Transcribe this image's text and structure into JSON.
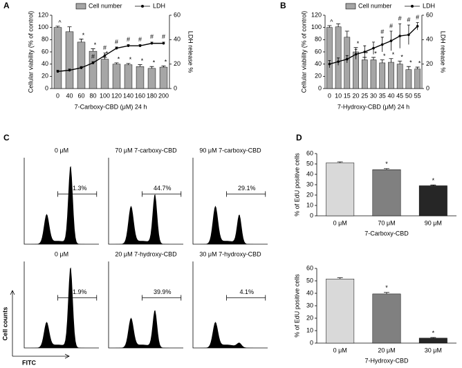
{
  "chart_data": [
    {
      "type": "combo",
      "panel": "A",
      "xlabel": "7-Carboxy-CBD (μM) 24 h",
      "ylabel": "Cellular viability (% of control)",
      "y2label": "LDH release %",
      "categories": [
        "0",
        "40",
        "60",
        "80",
        "100",
        "120",
        "140",
        "160",
        "180",
        "200"
      ],
      "ylim": [
        0,
        120
      ],
      "yticks": [
        0,
        20,
        40,
        60,
        80,
        100,
        120
      ],
      "y2lim": [
        0,
        60
      ],
      "y2ticks": [
        0,
        20,
        40,
        60
      ],
      "series": [
        {
          "name": "Cell number",
          "color": "#a6a6a6",
          "values": [
            100,
            93,
            76,
            61,
            48,
            40,
            39,
            36,
            33,
            35
          ],
          "errors": [
            2,
            8,
            5,
            4,
            3,
            2,
            2,
            3,
            3,
            2
          ],
          "annotations": [
            "^",
            null,
            "*",
            "*",
            "*",
            "*",
            "*",
            "*",
            "*",
            "*"
          ]
        },
        {
          "name": "LDH",
          "color": "#000000",
          "axis": "y2",
          "values": [
            14,
            15,
            17,
            21,
            27,
            33,
            35,
            35,
            37,
            37
          ],
          "errors": [
            1,
            1,
            1,
            1,
            2,
            1,
            1,
            1,
            1,
            1
          ],
          "annotations": [
            null,
            null,
            null,
            "#",
            "#",
            "#",
            "#",
            "#",
            "#",
            "#"
          ]
        }
      ]
    },
    {
      "type": "combo",
      "panel": "B",
      "xlabel": "7-Hydroxy-CBD (μM) 24 h",
      "ylabel": "Cellular viability (% of control)",
      "y2label": "LDH release %",
      "categories": [
        "0",
        "10",
        "15",
        "20",
        "25",
        "30",
        "35",
        "40",
        "45",
        "50",
        "55"
      ],
      "ylim": [
        0,
        120
      ],
      "yticks": [
        0,
        20,
        40,
        60,
        80,
        100,
        120
      ],
      "y2lim": [
        0,
        60
      ],
      "y2ticks": [
        0,
        20,
        40,
        60
      ],
      "series": [
        {
          "name": "Cell number",
          "color": "#a6a6a6",
          "values": [
            100,
            101,
            84,
            60,
            47,
            47,
            42,
            43,
            40,
            31,
            32
          ],
          "errors": [
            3,
            5,
            10,
            7,
            4,
            4,
            5,
            6,
            5,
            5,
            3
          ],
          "annotations": [
            "^",
            null,
            null,
            "*",
            "*",
            "*",
            "*",
            "*",
            "*",
            "*",
            "*"
          ]
        },
        {
          "name": "LDH",
          "color": "#000000",
          "axis": "y2",
          "values": [
            20,
            22,
            24,
            28,
            30,
            33,
            36,
            39,
            43,
            44,
            51
          ],
          "errors": [
            3,
            3,
            3,
            4,
            5,
            5,
            6,
            8,
            10,
            8,
            3
          ],
          "annotations": [
            null,
            null,
            null,
            null,
            null,
            null,
            "#",
            "#",
            "#",
            "#",
            "#"
          ]
        }
      ]
    },
    {
      "type": "flow",
      "panel": "C",
      "ylabel": "Cell counts",
      "xlabel": "FITC",
      "panels": [
        {
          "title": "0 μM",
          "gate_label": "51.3%"
        },
        {
          "title": "70 μM 7-carboxy-CBD",
          "gate_label": "44.7%"
        },
        {
          "title": "90 μM 7-carboxy-CBD",
          "gate_label": "29.1%"
        },
        {
          "title": "0 μM",
          "gate_label": "51.9%"
        },
        {
          "title": "20 μM 7-hydroxy-CBD",
          "gate_label": "39.9%"
        },
        {
          "title": "30 μM 7-hydroxy-CBD",
          "gate_label": "4.1%"
        }
      ]
    },
    {
      "type": "bar",
      "panel": "D",
      "xlabel": "7-Carboxy-CBD",
      "ylabel": "% of EdU positive cells",
      "categories": [
        "0 μM",
        "70 μM",
        "90 μM"
      ],
      "values": [
        51,
        44.5,
        29
      ],
      "errors": [
        1,
        1,
        0.7
      ],
      "annotations": [
        null,
        "*",
        "*"
      ],
      "colors": [
        "#d9d9d9",
        "#808080",
        "#262626"
      ],
      "ylim": [
        0,
        60
      ],
      "yticks": [
        0,
        10,
        20,
        30,
        40,
        50,
        60
      ]
    },
    {
      "type": "bar",
      "xlabel": "7-Hydroxy-CBD",
      "ylabel": "% of EdU positive cells",
      "categories": [
        "0 μM",
        "20 μM",
        "30 μM"
      ],
      "values": [
        51.5,
        39.5,
        4
      ],
      "errors": [
        1,
        1.2,
        0.5
      ],
      "annotations": [
        null,
        "*",
        "*"
      ],
      "colors": [
        "#d9d9d9",
        "#808080",
        "#262626"
      ],
      "ylim": [
        0,
        60
      ],
      "yticks": [
        0,
        10,
        20,
        30,
        40,
        50,
        60
      ]
    }
  ]
}
